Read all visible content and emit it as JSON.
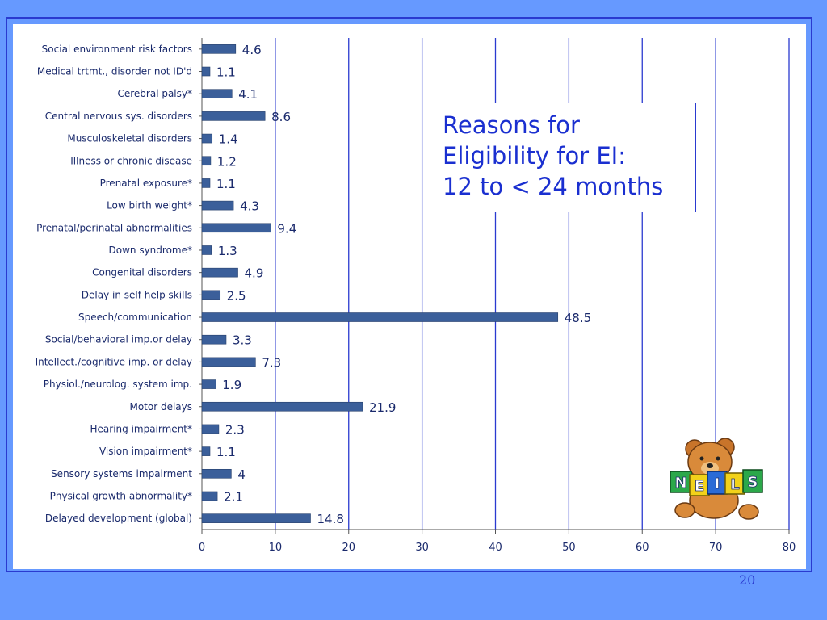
{
  "title_box": {
    "lines": [
      "Reasons for",
      "Eligibility for EI:",
      "12 to < 24 months"
    ]
  },
  "page_number": "20",
  "logo": {
    "icon": "teddy-bear-icon",
    "letters": [
      "N",
      "E",
      "I",
      "L",
      "S"
    ]
  },
  "colors": {
    "background": "#6699ff",
    "bar": "#3b5f9a",
    "gridline": "#2a3ad0",
    "title_text": "#1a2fd0",
    "label_text": "#1a2a6c"
  },
  "chart_data": {
    "type": "bar",
    "orientation": "horizontal",
    "categories": [
      "Social environment risk factors",
      "Medical trtmt., disorder not ID'd",
      "Cerebral palsy*",
      "Central nervous sys. disorders",
      "Musculoskeletal disorders",
      "Illness or chronic disease",
      "Prenatal exposure*",
      "Low birth weight*",
      "Prenatal/perinatal abnormalities",
      "Down syndrome*",
      "Congenital disorders",
      "Delay in self help skills",
      "Speech/communication",
      "Social/behavioral imp.or delay",
      "Intellect./cognitive imp. or delay",
      "Physiol./neurolog. system imp.",
      "Motor delays",
      "Hearing impairment*",
      "Vision impairment*",
      "Sensory systems impairment",
      "Physical growth abnormality*",
      "Delayed development (global)"
    ],
    "values": [
      4.6,
      1.1,
      4.1,
      8.6,
      1.4,
      1.2,
      1.1,
      4.3,
      9.4,
      1.3,
      4.9,
      2.5,
      48.5,
      3.3,
      7.3,
      1.9,
      21.9,
      2.3,
      1.1,
      4,
      2.1,
      14.8
    ],
    "value_labels": [
      "4.6",
      "1.1",
      "4.1",
      "8.6",
      "1.4",
      "1.2",
      "1.1",
      "4.3",
      "9.4",
      "1.3",
      "4.9",
      "2.5",
      "48.5",
      "3.3",
      "7.3",
      "1.9",
      "21.9",
      "2.3",
      "1.1",
      "4",
      "2.1",
      "14.8"
    ],
    "xlim": [
      0,
      80
    ],
    "x_ticks": [
      "0",
      "10",
      "20",
      "30",
      "40",
      "50",
      "60",
      "70",
      "80"
    ],
    "grid": "vertical",
    "title": "",
    "xlabel": "",
    "ylabel": ""
  }
}
